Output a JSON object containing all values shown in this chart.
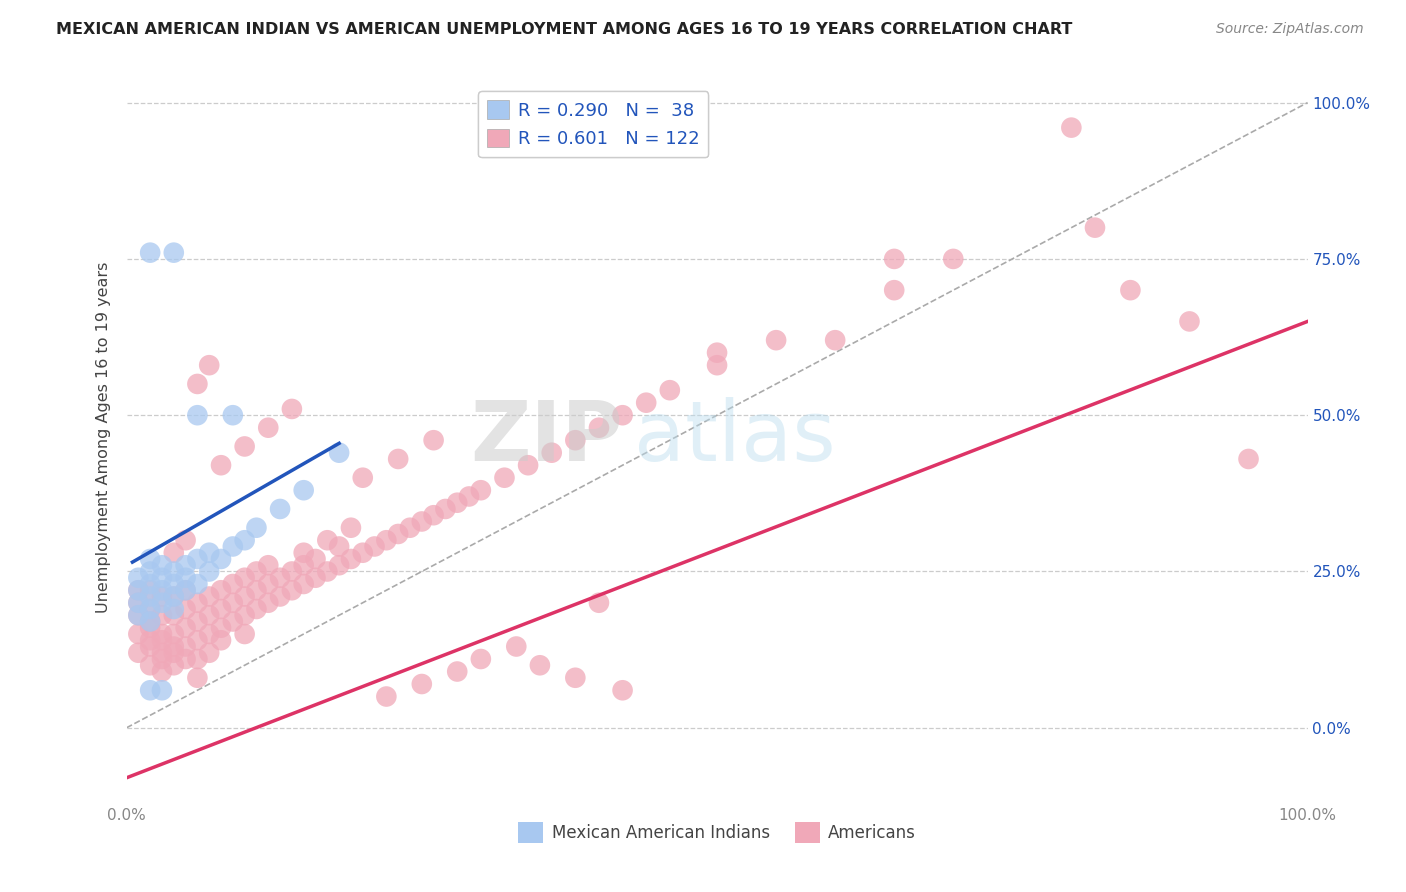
{
  "title": "MEXICAN AMERICAN INDIAN VS AMERICAN UNEMPLOYMENT AMONG AGES 16 TO 19 YEARS CORRELATION CHART",
  "source": "Source: ZipAtlas.com",
  "ylabel": "Unemployment Among Ages 16 to 19 years",
  "blue_R": 0.29,
  "blue_N": 38,
  "pink_R": 0.601,
  "pink_N": 122,
  "legend_label_blue": "Mexican American Indians",
  "legend_label_pink": "Americans",
  "blue_color": "#a8c8f0",
  "pink_color": "#f0a8b8",
  "blue_line_color": "#2255bb",
  "pink_line_color": "#dd3366",
  "dashed_line_color": "#aaaaaa",
  "background_color": "#ffffff",
  "watermark_zip": "ZIP",
  "watermark_atlas": "atlas",
  "blue_x": [
    0.01,
    0.01,
    0.01,
    0.01,
    0.02,
    0.02,
    0.02,
    0.02,
    0.02,
    0.02,
    0.03,
    0.03,
    0.03,
    0.03,
    0.04,
    0.04,
    0.04,
    0.04,
    0.05,
    0.05,
    0.05,
    0.06,
    0.06,
    0.07,
    0.07,
    0.08,
    0.09,
    0.1,
    0.11,
    0.13,
    0.15,
    0.18,
    0.02,
    0.04,
    0.06,
    0.09,
    0.02,
    0.03
  ],
  "blue_y": [
    0.2,
    0.22,
    0.18,
    0.24,
    0.19,
    0.21,
    0.23,
    0.25,
    0.27,
    0.17,
    0.2,
    0.22,
    0.24,
    0.26,
    0.21,
    0.23,
    0.25,
    0.19,
    0.22,
    0.24,
    0.26,
    0.23,
    0.27,
    0.25,
    0.28,
    0.27,
    0.29,
    0.3,
    0.32,
    0.35,
    0.38,
    0.44,
    0.76,
    0.76,
    0.5,
    0.5,
    0.06,
    0.06
  ],
  "pink_x": [
    0.01,
    0.01,
    0.01,
    0.01,
    0.01,
    0.02,
    0.02,
    0.02,
    0.02,
    0.02,
    0.02,
    0.02,
    0.03,
    0.03,
    0.03,
    0.03,
    0.03,
    0.03,
    0.03,
    0.04,
    0.04,
    0.04,
    0.04,
    0.04,
    0.04,
    0.05,
    0.05,
    0.05,
    0.05,
    0.05,
    0.06,
    0.06,
    0.06,
    0.06,
    0.06,
    0.07,
    0.07,
    0.07,
    0.07,
    0.08,
    0.08,
    0.08,
    0.08,
    0.09,
    0.09,
    0.09,
    0.1,
    0.1,
    0.1,
    0.1,
    0.11,
    0.11,
    0.11,
    0.12,
    0.12,
    0.12,
    0.13,
    0.13,
    0.14,
    0.14,
    0.15,
    0.15,
    0.16,
    0.16,
    0.17,
    0.18,
    0.18,
    0.19,
    0.2,
    0.21,
    0.22,
    0.23,
    0.24,
    0.25,
    0.26,
    0.27,
    0.28,
    0.29,
    0.3,
    0.32,
    0.34,
    0.36,
    0.38,
    0.4,
    0.42,
    0.44,
    0.46,
    0.5,
    0.55,
    0.6,
    0.65,
    0.7,
    0.4,
    0.5,
    0.65,
    0.8,
    0.82,
    0.85,
    0.9,
    0.95,
    0.35,
    0.38,
    0.42,
    0.22,
    0.25,
    0.28,
    0.3,
    0.33,
    0.2,
    0.23,
    0.26,
    0.15,
    0.17,
    0.19,
    0.08,
    0.1,
    0.12,
    0.14,
    0.06,
    0.07,
    0.04,
    0.05
  ],
  "pink_y": [
    0.15,
    0.18,
    0.12,
    0.2,
    0.22,
    0.13,
    0.16,
    0.19,
    0.22,
    0.1,
    0.14,
    0.17,
    0.12,
    0.15,
    0.18,
    0.21,
    0.09,
    0.11,
    0.14,
    0.12,
    0.15,
    0.18,
    0.21,
    0.1,
    0.13,
    0.13,
    0.16,
    0.19,
    0.22,
    0.11,
    0.14,
    0.17,
    0.2,
    0.11,
    0.08,
    0.15,
    0.18,
    0.21,
    0.12,
    0.16,
    0.19,
    0.22,
    0.14,
    0.17,
    0.2,
    0.23,
    0.18,
    0.21,
    0.24,
    0.15,
    0.19,
    0.22,
    0.25,
    0.2,
    0.23,
    0.26,
    0.21,
    0.24,
    0.22,
    0.25,
    0.23,
    0.26,
    0.24,
    0.27,
    0.25,
    0.26,
    0.29,
    0.27,
    0.28,
    0.29,
    0.3,
    0.31,
    0.32,
    0.33,
    0.34,
    0.35,
    0.36,
    0.37,
    0.38,
    0.4,
    0.42,
    0.44,
    0.46,
    0.48,
    0.5,
    0.52,
    0.54,
    0.58,
    0.62,
    0.62,
    0.7,
    0.75,
    0.2,
    0.6,
    0.75,
    0.96,
    0.8,
    0.7,
    0.65,
    0.43,
    0.1,
    0.08,
    0.06,
    0.05,
    0.07,
    0.09,
    0.11,
    0.13,
    0.4,
    0.43,
    0.46,
    0.28,
    0.3,
    0.32,
    0.42,
    0.45,
    0.48,
    0.51,
    0.55,
    0.58,
    0.28,
    0.3
  ],
  "blue_line_x": [
    0.005,
    0.18
  ],
  "blue_line_y": [
    0.265,
    0.455
  ],
  "pink_line_x": [
    0.0,
    1.0
  ],
  "pink_line_y": [
    -0.08,
    0.65
  ],
  "diag_line_x": [
    0.0,
    1.0
  ],
  "diag_line_y": [
    0.0,
    1.0
  ],
  "xlim": [
    0.0,
    1.0
  ],
  "ylim": [
    -0.12,
    1.05
  ],
  "yticks": [
    0.0,
    0.25,
    0.5,
    0.75,
    1.0
  ],
  "xticks": [
    0.0,
    1.0
  ]
}
